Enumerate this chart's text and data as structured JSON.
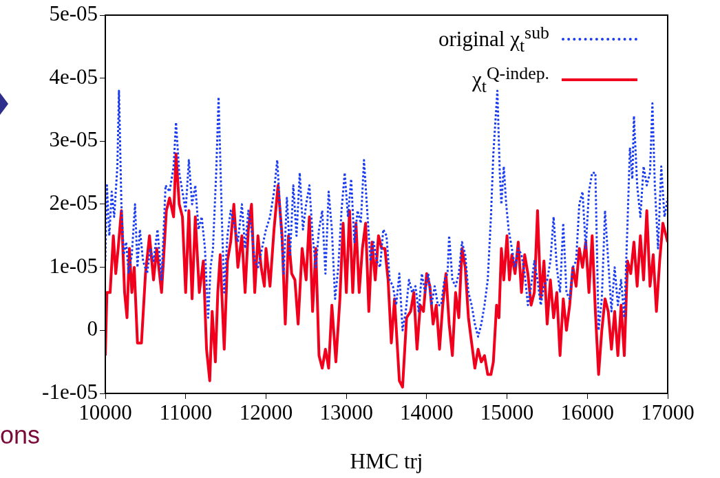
{
  "chart_data": {
    "type": "line",
    "xlabel": "HMC trj",
    "legend": "top right",
    "xlim": [
      10000,
      17000
    ],
    "xticks": [
      10000,
      11000,
      12000,
      13000,
      14000,
      15000,
      16000,
      17000
    ],
    "ylim": [
      -1e-05,
      5e-05
    ],
    "yticks": [
      {
        "value": -1e-05,
        "label": "-1e-05"
      },
      0,
      {
        "value": 1e-05,
        "label": "1e-05"
      },
      {
        "value": 2e-05,
        "label": "2e-05"
      },
      {
        "value": 3e-05,
        "label": "3e-05"
      },
      {
        "value": 4e-05,
        "label": "4e-05"
      },
      {
        "value": 5e-05,
        "label": "5e-05"
      }
    ],
    "annotations": [
      "ons"
    ],
    "series": [
      {
        "name": "original χ$_{t}$$^{sub}$",
        "color": "#1a3cf0",
        "line_style": "dotted",
        "x": [
          10000,
          10020,
          10050,
          10080,
          10110,
          10150,
          10170,
          10200,
          10230,
          10260,
          10290,
          10330,
          10370,
          10400,
          10430,
          10470,
          10520,
          10560,
          10600,
          10650,
          10700,
          10750,
          10800,
          10850,
          10880,
          10920,
          10960,
          11000,
          11040,
          11080,
          11120,
          11160,
          11200,
          11240,
          11280,
          11310,
          11340,
          11380,
          11410,
          11450,
          11480,
          11520,
          11560,
          11600,
          11650,
          11700,
          11740,
          11780,
          11820,
          11860,
          11900,
          11950,
          12000,
          12050,
          12100,
          12140,
          12180,
          12220,
          12260,
          12300,
          12340,
          12380,
          12420,
          12460,
          12500,
          12540,
          12580,
          12620,
          12660,
          12700,
          12740,
          12780,
          12820,
          12860,
          12900,
          12940,
          12980,
          13020,
          13060,
          13100,
          13140,
          13180,
          13220,
          13260,
          13300,
          13340,
          13380,
          13420,
          13460,
          13500,
          13540,
          13580,
          13620,
          13660,
          13700,
          13740,
          13780,
          13820,
          13860,
          13900,
          13940,
          13980,
          14020,
          14060,
          14100,
          14140,
          14180,
          14220,
          14260,
          14280,
          14320,
          14360,
          14400,
          14440,
          14480,
          14520,
          14560,
          14600,
          14640,
          14680,
          14720,
          14760,
          14800,
          14830,
          14860,
          14880,
          14910,
          14930,
          14960,
          14990,
          15020,
          15060,
          15100,
          15140,
          15180,
          15220,
          15260,
          15300,
          15340,
          15380,
          15420,
          15460,
          15500,
          15540,
          15580,
          15620,
          15660,
          15700,
          15740,
          15780,
          15820,
          15860,
          15900,
          15940,
          15980,
          16020,
          16060,
          16100,
          16140,
          16180,
          16220,
          16260,
          16300,
          16340,
          16380,
          16420,
          16460,
          16500,
          16530,
          16560,
          16580,
          16620,
          16660,
          16700,
          16740,
          16780,
          16810,
          16840,
          16880,
          16920,
          16960,
          17000
        ],
        "values": [
          1.1e-05,
          2.3e-05,
          1.5e-05,
          2.2e-05,
          1.8e-05,
          2.6e-05,
          3.8e-05,
          2e-05,
          1.2e-05,
          1.4e-05,
          9e-06,
          1.2e-05,
          2e-05,
          1e-05,
          1.6e-05,
          1.1e-05,
          9e-06,
          1.3e-05,
          1.1e-05,
          1.6e-05,
          8e-06,
          2.3e-05,
          2.2e-05,
          2.6e-05,
          3.3e-05,
          2.5e-05,
          2.2e-05,
          1.9e-05,
          2.7e-05,
          2e-05,
          2.3e-05,
          1.6e-05,
          1.8e-05,
          1.3e-05,
          2e-06,
          1e-05,
          1.3e-05,
          2.5e-05,
          3.7e-05,
          1.8e-05,
          6e-06,
          1.5e-05,
          1.9e-05,
          1.7e-05,
          1.4e-05,
          2e-05,
          1.3e-05,
          1.9e-05,
          1.6e-05,
          1.1e-05,
          1e-05,
          1.3e-05,
          1.6e-05,
          1.8e-05,
          2.2e-05,
          2.7e-05,
          1.8e-05,
          9e-06,
          2.1e-05,
          1.2e-05,
          2.3e-05,
          1.5e-05,
          2.5e-05,
          1.6e-05,
          2e-05,
          2.3e-05,
          1.5e-05,
          1e-05,
          1.6e-05,
          1.9e-05,
          9e-06,
          2.2e-05,
          1.6e-05,
          5e-06,
          1e-05,
          1.9e-05,
          2.5e-05,
          1.8e-05,
          2.4e-05,
          1.4e-05,
          1.9e-05,
          1.7e-05,
          2.7e-05,
          1.9e-05,
          1.1e-05,
          1.4e-05,
          1.1e-05,
          1e-05,
          1.6e-05,
          1.5e-05,
          8e-06,
          7e-06,
          4e-06,
          9e-06,
          0,
          3e-06,
          8e-06,
          6e-06,
          7e-06,
          3e-06,
          9e-06,
          6e-06,
          9e-06,
          4e-06,
          7e-06,
          4e-06,
          4e-06,
          8e-06,
          9e-06,
          1.5e-05,
          8e-06,
          7e-06,
          9e-06,
          1.4e-05,
          1.2e-05,
          6e-06,
          4e-06,
          1e-06,
          -1e-06,
          1e-06,
          4e-06,
          8e-06,
          1.8e-05,
          2.8e-05,
          3.4e-05,
          3.8e-05,
          2.5e-05,
          2e-05,
          2.6e-05,
          2e-05,
          1.6e-05,
          1.3e-05,
          1e-05,
          1.3e-05,
          1.2e-05,
          9e-06,
          4e-06,
          7e-06,
          1.1e-05,
          8e-06,
          4e-06,
          7e-06,
          8e-06,
          1.1e-05,
          1.8e-05,
          1e-05,
          6e-06,
          1.7e-05,
          6e-06,
          5e-06,
          1e-05,
          1.1e-05,
          2e-05,
          2.2e-05,
          1.3e-05,
          2.2e-05,
          2.5e-05,
          2.5e-05,
          0,
          5e-06,
          1.9e-05,
          1.1e-05,
          3e-06,
          1e-05,
          4e-06,
          8e-06,
          2e-06,
          1.7e-05,
          2.9e-05,
          2.4e-05,
          3.4e-05,
          2.3e-05,
          1.8e-05,
          2.6e-05,
          2.3e-05,
          2.5e-05,
          3.6e-05,
          2.3e-05,
          1.3e-05,
          2.6e-05,
          1.8e-05,
          2.1e-05
        ]
      },
      {
        "name": "χ$_{t}$$^{Q-indep.}$",
        "color": "#f0001c",
        "line_style": "solid",
        "x": [
          10000,
          10020,
          10060,
          10100,
          10130,
          10160,
          10200,
          10240,
          10270,
          10300,
          10330,
          10360,
          10400,
          10450,
          10500,
          10550,
          10600,
          10640,
          10700,
          10760,
          10800,
          10850,
          10880,
          10920,
          10960,
          11000,
          11040,
          11080,
          11120,
          11170,
          11220,
          11260,
          11300,
          11330,
          11370,
          11400,
          11430,
          11480,
          11520,
          11560,
          11600,
          11650,
          11700,
          11740,
          11780,
          11820,
          11860,
          11900,
          11940,
          11980,
          12000,
          12050,
          12100,
          12150,
          12200,
          12240,
          12280,
          12320,
          12360,
          12400,
          12450,
          12500,
          12540,
          12580,
          12620,
          12660,
          12700,
          12740,
          12780,
          12820,
          12870,
          12920,
          12960,
          13000,
          13040,
          13080,
          13120,
          13160,
          13200,
          13240,
          13280,
          13320,
          13360,
          13400,
          13440,
          13480,
          13520,
          13560,
          13600,
          13660,
          13700,
          13750,
          13800,
          13840,
          13880,
          13920,
          13960,
          14000,
          14040,
          14080,
          14120,
          14160,
          14200,
          14240,
          14280,
          14320,
          14360,
          14400,
          14440,
          14480,
          14520,
          14560,
          14600,
          14640,
          14680,
          14720,
          14760,
          14800,
          14830,
          14870,
          14900,
          14930,
          14960,
          15000,
          15030,
          15060,
          15100,
          15140,
          15180,
          15220,
          15260,
          15300,
          15340,
          15380,
          15420,
          15460,
          15500,
          15540,
          15580,
          15620,
          15660,
          15700,
          15740,
          15780,
          15820,
          15860,
          15900,
          15940,
          15980,
          16020,
          16060,
          16100,
          16140,
          16180,
          16220,
          16260,
          16300,
          16340,
          16380,
          16420,
          16460,
          16500,
          16540,
          16580,
          16620,
          16660,
          16700,
          16740,
          16780,
          16820,
          16860,
          16900,
          16940,
          17000
        ],
        "values": [
          -4e-06,
          6e-06,
          6e-06,
          1.5e-05,
          9e-06,
          1.3e-05,
          1.9e-05,
          6e-06,
          2e-06,
          1.3e-05,
          6e-06,
          1e-05,
          -2e-06,
          -2e-06,
          9e-06,
          1.5e-05,
          8e-06,
          1.3e-05,
          6e-06,
          1.9e-05,
          2.1e-05,
          1.8e-05,
          2.8e-05,
          2e-05,
          1.8e-05,
          6e-06,
          1.9e-05,
          5e-06,
          1.8e-05,
          6e-06,
          1.1e-05,
          -3e-06,
          -8e-06,
          3e-06,
          -5e-06,
          6e-06,
          1.2e-05,
          -3e-06,
          1.1e-05,
          1.4e-05,
          2e-05,
          1e-05,
          1.5e-05,
          6e-06,
          1.6e-05,
          2e-05,
          6e-06,
          1.5e-05,
          1e-05,
          7e-06,
          1.3e-05,
          7e-06,
          1.6e-05,
          2.3e-05,
          1.5e-05,
          1e-06,
          1.5e-05,
          9e-06,
          8e-06,
          1e-06,
          1.3e-05,
          8e-06,
          1.8e-05,
          3e-06,
          1.3e-05,
          -4e-06,
          -6e-06,
          -3e-06,
          -6e-06,
          4e-06,
          -5e-06,
          5e-06,
          1.7e-05,
          6e-06,
          1.9e-05,
          6e-06,
          1.7e-05,
          6e-06,
          1.3e-05,
          1.7e-05,
          3e-06,
          1.4e-05,
          8e-06,
          1.5e-05,
          1.3e-05,
          1.3e-05,
          8e-06,
          -2e-06,
          5e-06,
          -8e-06,
          -9e-06,
          2e-06,
          3e-06,
          6e-06,
          -3e-06,
          4e-06,
          3e-06,
          9e-06,
          7e-06,
          1e-06,
          4e-06,
          -3e-06,
          4e-06,
          9e-06,
          1e-06,
          -4e-06,
          6e-06,
          2e-06,
          1.3e-05,
          1e-05,
          2e-06,
          -2e-06,
          -6e-06,
          -3e-06,
          -5e-06,
          -4e-06,
          -7e-06,
          -7e-06,
          -5e-06,
          4e-06,
          2e-06,
          1.3e-05,
          8e-06,
          1.5e-05,
          8e-06,
          1.2e-05,
          9e-06,
          1.4e-05,
          6e-06,
          1.2e-05,
          9e-06,
          4e-06,
          6e-06,
          1.9e-05,
          5e-06,
          1.1e-05,
          1e-06,
          8e-06,
          2e-06,
          6e-06,
          -4e-06,
          5e-06,
          0,
          4e-06,
          1e-05,
          7e-06,
          1.3e-05,
          1e-05,
          1.4e-05,
          6e-06,
          1.5e-05,
          3e-06,
          -7e-06,
          0,
          5e-06,
          3e-06,
          -3e-06,
          3e-06,
          -4e-06,
          4e-06,
          -4e-06,
          1.1e-05,
          9e-06,
          1.4e-05,
          7e-06,
          1.5e-05,
          8e-06,
          1.9e-05,
          7e-06,
          1.2e-05,
          3e-06,
          1.1e-05,
          1.7e-05,
          1.4e-05
        ]
      }
    ]
  }
}
